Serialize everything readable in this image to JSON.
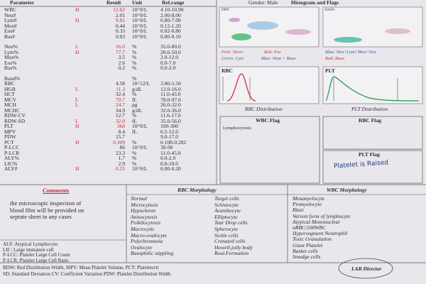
{
  "header": {
    "gender": "Gender: Male",
    "columns": [
      "Parameter",
      "Result",
      "Unit",
      "Ref.range"
    ],
    "histogram_title": "Histogram and Flags"
  },
  "results": {
    "rows": [
      {
        "name": "WBC",
        "flag": "H",
        "result": "12.62",
        "unit": "10^9/L",
        "range": "4.10-10.90"
      },
      {
        "name": "Neu#",
        "result": "2.01",
        "unit": "10^9/L",
        "range": "2.00-8.00"
      },
      {
        "name": "Lym#",
        "flag": "H",
        "result": "9.81",
        "unit": "10^9/L",
        "range": "0.80-7.00"
      },
      {
        "name": "Mon#",
        "result": "0.44",
        "unit": "10^9/L",
        "range": "0.12-1.20"
      },
      {
        "name": "Eos#",
        "result": "0.33",
        "unit": "10^9/L",
        "range": "0.02-0.80"
      },
      {
        "name": "Bas#",
        "result": "0.03",
        "unit": "10^9/L",
        "range": "0.00-0.10"
      },
      {
        "name": "Neu%",
        "flag": "L",
        "result": "16.0",
        "unit": "%",
        "range": "35.0-80.0"
      },
      {
        "name": "Lym%",
        "flag": "H",
        "result": "77.7",
        "unit": "%",
        "range": "20.0-50.0"
      },
      {
        "name": "Mon%",
        "result": "3.5",
        "unit": "%",
        "range": "2.0-12.0"
      },
      {
        "name": "Eos%",
        "result": "2.6",
        "unit": "%",
        "range": "0.0-7.0"
      },
      {
        "name": "Bas%",
        "result": "0.2",
        "unit": "%",
        "range": "0.0-2.0"
      },
      {
        "name": "Band%",
        "unit": "%"
      },
      {
        "name": "RBC",
        "result": "4.58",
        "unit": "10^12/L",
        "range": "3.80-5.50"
      },
      {
        "name": "HGB",
        "flag": "L",
        "result": "11.3",
        "unit": "g/dL",
        "range": "12.0-16.0"
      },
      {
        "name": "HCT",
        "result": "32.4",
        "unit": "%",
        "range": "11.0-43.0"
      },
      {
        "name": "MCV",
        "flag": "L",
        "result": "70.7",
        "unit": "fL",
        "range": "78.0-97.0"
      },
      {
        "name": "MCH",
        "flag": "L",
        "result": "24.7",
        "unit": "pg",
        "range": "26.0-32.0"
      },
      {
        "name": "MCHC",
        "result": "34.9",
        "unit": "g/dL",
        "range": "32.0-36.0"
      },
      {
        "name": "RDW-CV",
        "result": "12.7",
        "unit": "%",
        "range": "11.6-17.0"
      },
      {
        "name": "RDW-SD",
        "flag": "L",
        "result": "32.0",
        "unit": "fL",
        "range": "35.0-56.0"
      },
      {
        "name": "PLT",
        "flag": "H",
        "result": "368",
        "unit": "10^9/L",
        "range": "100-300"
      },
      {
        "name": "MPV",
        "result": "8.4",
        "unit": "fL",
        "range": "6.5-12.0"
      },
      {
        "name": "PDW",
        "result": "15.7",
        "range": "9.0-17.0"
      },
      {
        "name": "PCT",
        "flag": "H",
        "result": "0.309",
        "unit": "%",
        "range": "0.108-0.282"
      },
      {
        "name": "P-LCC",
        "result": "86",
        "unit": "10^9/L",
        "range": "30-90"
      },
      {
        "name": "P-LCR",
        "result": "23.3",
        "unit": "%",
        "range": "11.0-45.0"
      },
      {
        "name": "ALY%",
        "result": "1.7",
        "unit": "%",
        "range": "0.0-2.0"
      },
      {
        "name": "LIC%",
        "result": "2.9",
        "unit": "%",
        "range": "0.0-10.0"
      },
      {
        "name": "ALY#",
        "flag": "H",
        "result": "0.21",
        "unit": "10^9/L",
        "range": "0.00-0.20"
      }
    ]
  },
  "histograms": {
    "diff": "DIFF",
    "baso": "BASO",
    "legend": [
      "Pink: Mono",
      "Red: Eos",
      "Blue: Neu+Lym+Mon+Eos",
      "Green: Lym",
      "Blue: Neut + Baso",
      "Red: Baso"
    ],
    "rbc": "RBC",
    "plt": "PLT",
    "rbc_caption": "RBC Distribution",
    "plt_caption": "PLT Distribution"
  },
  "flags": {
    "wbc_title": "WBC Flag",
    "wbc_text": "Lymphocytosis",
    "rbc_title": "RBC Flag",
    "plt_title": "PLT Flag",
    "plt_text": "Platelet is Raised"
  },
  "comments": {
    "title": "Comments",
    "lines": [
      "the microscopic inspection of",
      "blood film will be provided on",
      "seprate sheet in any cases"
    ]
  },
  "rbc_morphology": {
    "title": "RBC Morphology",
    "left": [
      "Normal",
      "Microcytosis",
      "Hypochrom",
      "Anisocytosis",
      "Poikilocytosis",
      "Macrocytic",
      "Macro-ovalocyte",
      "Polychromasia",
      "Ovalocyte",
      "Basophilic stippling"
    ],
    "right": [
      "Target cells",
      "Schistocyte",
      "Acanthocyte",
      "Elliptocyte",
      "Tear Drop cells",
      "Spherocyte",
      "Sickle cells",
      "Crenated cells",
      "Howell-jolly body",
      "Roul.Formation"
    ]
  },
  "wbc_morphology": {
    "title": "WBC Morphology",
    "items": [
      "Metamyelocyte",
      "Promyelocyte",
      "Blast",
      "Varient form of lymphocyte",
      "Atypical Mononuclear",
      "nRBC/100WBC",
      "Hypersegment Neutrophil",
      "Toxic Granulation",
      "Giant Platelet",
      "Basket cells",
      "Smudge cells"
    ]
  },
  "abbreviations": [
    "ALY: Atypical Lymphocyte",
    "LIC: Large immature cell",
    "P-LCC: Platelet Large Cell Count",
    "P-LCR: Platelet Large Cell Ratio"
  ],
  "footer": [
    "RDW: Red Distribution Width,   MPV: Mean Platelet Volume,   PCT: Plateletcrit",
    "SD: Standard Deviation   CV: Coefficient Variation        PDW: Platelet Distribution Width"
  ],
  "signature": "LAB Director"
}
